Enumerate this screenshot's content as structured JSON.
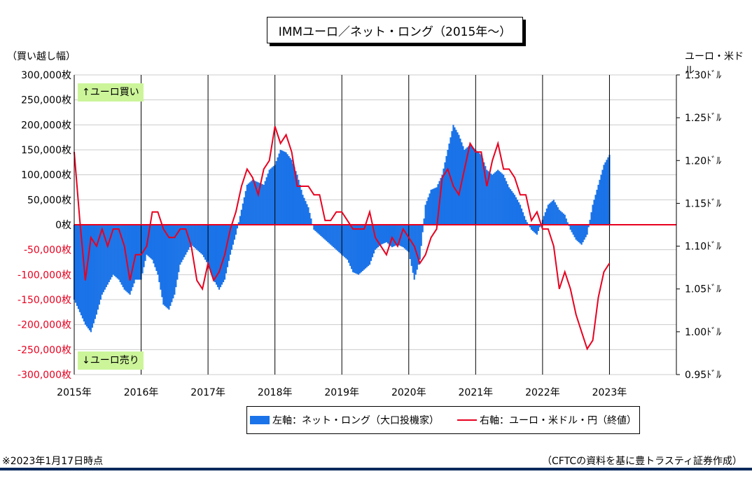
{
  "title": "IMMユーロ／ネット・ロング（2015年～）",
  "left_axis_title": "（買い越し幅）",
  "right_axis_title": "ユーロ・米ドル",
  "callouts": {
    "buy": "↑ユーロ買い",
    "sell": "↓ユーロ売り"
  },
  "legend": {
    "bar_label": "左軸：ネット・ロング（大口投機家）",
    "line_label": "右軸：ユーロ・米ドル・円（終値）"
  },
  "footnote": "※2023年1月17日時点",
  "source": "（CFTCの資料を基に豊トラスティ証券作成）",
  "colors": {
    "bar": "#1a73e8",
    "line": "#e8001f",
    "zero_line": "#e8001f",
    "grid": "#cccccc"
  },
  "chart_data": {
    "type": "bar+line",
    "title": "IMMユーロ／ネット・ロング（2015年～）",
    "x_axis": {
      "type": "time",
      "range": [
        "2015-01",
        "2024-01"
      ],
      "tick_labels": [
        "2015年",
        "2016年",
        "2017年",
        "2018年",
        "2019年",
        "2020年",
        "2021年",
        "2022年",
        "2023年"
      ]
    },
    "left_axis": {
      "label": "（買い越し幅）",
      "range": [
        -300000,
        300000
      ],
      "step": 50000,
      "tick_labels": [
        "300,000枚",
        "250,000枚",
        "200,000枚",
        "150,000枚",
        "100,000枚",
        "50,000枚",
        "0枚",
        "-50,000枚",
        "-100,000枚",
        "-150,000枚",
        "-200,000枚",
        "-250,000枚",
        "-300,000枚"
      ]
    },
    "right_axis": {
      "label": "ユーロ・米ドル",
      "range": [
        0.95,
        1.3
      ],
      "step": 0.05,
      "tick_labels": [
        "1.30ﾄﾞﾙ",
        "1.25ﾄﾞﾙ",
        "1.20ﾄﾞﾙ",
        "1.15ﾄﾞﾙ",
        "1.10ﾄﾞﾙ",
        "1.05ﾄﾞﾙ",
        "1.00ﾄﾞﾙ",
        "0.95ﾄﾞﾙ"
      ]
    },
    "grid": true,
    "series": [
      {
        "name": "左軸：ネット・ロング（大口投機家）",
        "type": "bar",
        "axis": "left",
        "points": [
          [
            "2015-01",
            -150000
          ],
          [
            "2015-02",
            -175000
          ],
          [
            "2015-03",
            -200000
          ],
          [
            "2015-04",
            -215000
          ],
          [
            "2015-05",
            -180000
          ],
          [
            "2015-06",
            -140000
          ],
          [
            "2015-07",
            -120000
          ],
          [
            "2015-08",
            -100000
          ],
          [
            "2015-09",
            -110000
          ],
          [
            "2015-10",
            -130000
          ],
          [
            "2015-11",
            -140000
          ],
          [
            "2015-12",
            -110000
          ],
          [
            "2016-01",
            -110000
          ],
          [
            "2016-02",
            -60000
          ],
          [
            "2016-03",
            -70000
          ],
          [
            "2016-04",
            -100000
          ],
          [
            "2016-05",
            -160000
          ],
          [
            "2016-06",
            -170000
          ],
          [
            "2016-07",
            -140000
          ],
          [
            "2016-08",
            -80000
          ],
          [
            "2016-09",
            -60000
          ],
          [
            "2016-10",
            -40000
          ],
          [
            "2016-11",
            -50000
          ],
          [
            "2016-12",
            -60000
          ],
          [
            "2017-01",
            -80000
          ],
          [
            "2017-02",
            -110000
          ],
          [
            "2017-03",
            -130000
          ],
          [
            "2017-04",
            -110000
          ],
          [
            "2017-05",
            -60000
          ],
          [
            "2017-06",
            -20000
          ],
          [
            "2017-07",
            30000
          ],
          [
            "2017-08",
            80000
          ],
          [
            "2017-09",
            90000
          ],
          [
            "2017-10",
            85000
          ],
          [
            "2017-11",
            80000
          ],
          [
            "2017-12",
            110000
          ],
          [
            "2018-01",
            120000
          ],
          [
            "2018-02",
            150000
          ],
          [
            "2018-03",
            145000
          ],
          [
            "2018-04",
            130000
          ],
          [
            "2018-05",
            100000
          ],
          [
            "2018-06",
            60000
          ],
          [
            "2018-07",
            35000
          ],
          [
            "2018-08",
            -10000
          ],
          [
            "2018-09",
            -20000
          ],
          [
            "2018-10",
            -30000
          ],
          [
            "2018-11",
            -40000
          ],
          [
            "2018-12",
            -50000
          ],
          [
            "2019-01",
            -60000
          ],
          [
            "2019-02",
            -70000
          ],
          [
            "2019-03",
            -95000
          ],
          [
            "2019-04",
            -100000
          ],
          [
            "2019-05",
            -90000
          ],
          [
            "2019-06",
            -80000
          ],
          [
            "2019-07",
            -50000
          ],
          [
            "2019-08",
            -40000
          ],
          [
            "2019-09",
            -35000
          ],
          [
            "2019-10",
            -45000
          ],
          [
            "2019-11",
            -40000
          ],
          [
            "2019-12",
            -45000
          ],
          [
            "2020-01",
            -55000
          ],
          [
            "2020-02",
            -110000
          ],
          [
            "2020-03",
            -70000
          ],
          [
            "2020-04",
            40000
          ],
          [
            "2020-05",
            70000
          ],
          [
            "2020-06",
            75000
          ],
          [
            "2020-07",
            100000
          ],
          [
            "2020-08",
            150000
          ],
          [
            "2020-09",
            200000
          ],
          [
            "2020-10",
            180000
          ],
          [
            "2020-11",
            150000
          ],
          [
            "2020-12",
            160000
          ],
          [
            "2021-01",
            150000
          ],
          [
            "2021-02",
            140000
          ],
          [
            "2021-03",
            110000
          ],
          [
            "2021-04",
            100000
          ],
          [
            "2021-05",
            110000
          ],
          [
            "2021-06",
            100000
          ],
          [
            "2021-07",
            75000
          ],
          [
            "2021-08",
            60000
          ],
          [
            "2021-09",
            40000
          ],
          [
            "2021-10",
            10000
          ],
          [
            "2021-11",
            -10000
          ],
          [
            "2021-12",
            -20000
          ],
          [
            "2022-01",
            10000
          ],
          [
            "2022-02",
            40000
          ],
          [
            "2022-03",
            50000
          ],
          [
            "2022-04",
            30000
          ],
          [
            "2022-05",
            20000
          ],
          [
            "2022-06",
            -10000
          ],
          [
            "2022-07",
            -30000
          ],
          [
            "2022-08",
            -40000
          ],
          [
            "2022-09",
            -20000
          ],
          [
            "2022-10",
            40000
          ],
          [
            "2022-11",
            80000
          ],
          [
            "2022-12",
            120000
          ],
          [
            "2023-01",
            140000
          ]
        ]
      },
      {
        "name": "右軸：ユーロ・米ドル・円（終値）",
        "type": "line",
        "axis": "right",
        "points": [
          [
            "2015-01",
            1.21
          ],
          [
            "2015-02",
            1.13
          ],
          [
            "2015-03",
            1.06
          ],
          [
            "2015-04",
            1.11
          ],
          [
            "2015-05",
            1.1
          ],
          [
            "2015-06",
            1.12
          ],
          [
            "2015-07",
            1.1
          ],
          [
            "2015-08",
            1.12
          ],
          [
            "2015-09",
            1.12
          ],
          [
            "2015-10",
            1.1
          ],
          [
            "2015-11",
            1.06
          ],
          [
            "2015-12",
            1.09
          ],
          [
            "2016-01",
            1.09
          ],
          [
            "2016-02",
            1.1
          ],
          [
            "2016-03",
            1.14
          ],
          [
            "2016-04",
            1.14
          ],
          [
            "2016-05",
            1.12
          ],
          [
            "2016-06",
            1.11
          ],
          [
            "2016-07",
            1.11
          ],
          [
            "2016-08",
            1.12
          ],
          [
            "2016-09",
            1.12
          ],
          [
            "2016-10",
            1.1
          ],
          [
            "2016-11",
            1.06
          ],
          [
            "2016-12",
            1.05
          ],
          [
            "2017-01",
            1.08
          ],
          [
            "2017-02",
            1.06
          ],
          [
            "2017-03",
            1.07
          ],
          [
            "2017-04",
            1.09
          ],
          [
            "2017-05",
            1.12
          ],
          [
            "2017-06",
            1.14
          ],
          [
            "2017-07",
            1.17
          ],
          [
            "2017-08",
            1.19
          ],
          [
            "2017-09",
            1.18
          ],
          [
            "2017-10",
            1.16
          ],
          [
            "2017-11",
            1.19
          ],
          [
            "2017-12",
            1.2
          ],
          [
            "2018-01",
            1.24
          ],
          [
            "2018-02",
            1.22
          ],
          [
            "2018-03",
            1.23
          ],
          [
            "2018-04",
            1.21
          ],
          [
            "2018-05",
            1.17
          ],
          [
            "2018-06",
            1.17
          ],
          [
            "2018-07",
            1.17
          ],
          [
            "2018-08",
            1.16
          ],
          [
            "2018-09",
            1.16
          ],
          [
            "2018-10",
            1.13
          ],
          [
            "2018-11",
            1.13
          ],
          [
            "2018-12",
            1.14
          ],
          [
            "2019-01",
            1.14
          ],
          [
            "2019-02",
            1.13
          ],
          [
            "2019-03",
            1.12
          ],
          [
            "2019-04",
            1.12
          ],
          [
            "2019-05",
            1.12
          ],
          [
            "2019-06",
            1.14
          ],
          [
            "2019-07",
            1.11
          ],
          [
            "2019-08",
            1.1
          ],
          [
            "2019-09",
            1.09
          ],
          [
            "2019-10",
            1.11
          ],
          [
            "2019-11",
            1.1
          ],
          [
            "2019-12",
            1.12
          ],
          [
            "2020-01",
            1.11
          ],
          [
            "2020-02",
            1.1
          ],
          [
            "2020-03",
            1.08
          ],
          [
            "2020-04",
            1.09
          ],
          [
            "2020-05",
            1.11
          ],
          [
            "2020-06",
            1.12
          ],
          [
            "2020-07",
            1.18
          ],
          [
            "2020-08",
            1.19
          ],
          [
            "2020-09",
            1.17
          ],
          [
            "2020-10",
            1.16
          ],
          [
            "2020-11",
            1.19
          ],
          [
            "2020-12",
            1.22
          ],
          [
            "2021-01",
            1.21
          ],
          [
            "2021-02",
            1.21
          ],
          [
            "2021-03",
            1.17
          ],
          [
            "2021-04",
            1.2
          ],
          [
            "2021-05",
            1.22
          ],
          [
            "2021-06",
            1.19
          ],
          [
            "2021-07",
            1.19
          ],
          [
            "2021-08",
            1.18
          ],
          [
            "2021-09",
            1.16
          ],
          [
            "2021-10",
            1.16
          ],
          [
            "2021-11",
            1.13
          ],
          [
            "2021-12",
            1.14
          ],
          [
            "2022-01",
            1.12
          ],
          [
            "2022-02",
            1.12
          ],
          [
            "2022-03",
            1.1
          ],
          [
            "2022-04",
            1.05
          ],
          [
            "2022-05",
            1.07
          ],
          [
            "2022-06",
            1.05
          ],
          [
            "2022-07",
            1.02
          ],
          [
            "2022-08",
            1.0
          ],
          [
            "2022-09",
            0.98
          ],
          [
            "2022-10",
            0.99
          ],
          [
            "2022-11",
            1.04
          ],
          [
            "2022-12",
            1.07
          ],
          [
            "2023-01",
            1.08
          ]
        ]
      }
    ]
  }
}
